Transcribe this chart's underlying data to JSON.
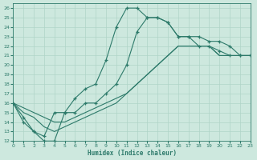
{
  "xlabel": "Humidex (Indice chaleur)",
  "bg_color": "#cde8de",
  "grid_color": "#b0d4c8",
  "line_color": "#2d7a6a",
  "xlim": [
    0,
    23
  ],
  "ylim": [
    12,
    26.5
  ],
  "xticks": [
    0,
    1,
    2,
    3,
    4,
    5,
    6,
    7,
    8,
    9,
    10,
    11,
    12,
    13,
    14,
    15,
    16,
    17,
    18,
    19,
    20,
    21,
    22,
    23
  ],
  "yticks": [
    12,
    13,
    14,
    15,
    16,
    17,
    18,
    19,
    20,
    21,
    22,
    23,
    24,
    25,
    26
  ],
  "s1x": [
    0,
    1,
    2,
    3,
    4,
    5,
    6,
    7,
    8,
    9,
    10,
    11,
    12,
    13,
    14,
    15,
    16,
    17,
    18,
    19,
    20,
    21,
    22,
    23
  ],
  "s1y": [
    16,
    14,
    13,
    12,
    12,
    15,
    16.5,
    17.5,
    18,
    20.5,
    24,
    26,
    26,
    25,
    25,
    24.5,
    23,
    23,
    23,
    22.5,
    22.5,
    22,
    21,
    21
  ],
  "s2x": [
    0,
    1,
    2,
    3,
    4,
    5,
    6,
    7,
    8,
    9,
    10,
    11,
    12,
    13,
    14,
    15,
    16,
    17,
    18,
    19,
    20,
    21,
    22,
    23
  ],
  "s2y": [
    16,
    14.5,
    13,
    12.5,
    15,
    15,
    15,
    16,
    16,
    17,
    18,
    20,
    23.5,
    25,
    25,
    24.5,
    23,
    23,
    22,
    22,
    21.5,
    21,
    21,
    21
  ],
  "s3x": [
    0,
    1,
    2,
    3,
    4,
    5,
    6,
    7,
    8,
    9,
    10,
    11,
    12,
    13,
    14,
    15,
    16,
    17,
    18,
    19,
    20,
    21,
    22,
    23
  ],
  "s3y": [
    16,
    15.5,
    15,
    14.5,
    14,
    14,
    14.5,
    15,
    15.5,
    16,
    16.5,
    17,
    18,
    19,
    20,
    21,
    22,
    22,
    22,
    22,
    21,
    21,
    21,
    21
  ],
  "s4x": [
    0,
    1,
    2,
    3,
    4,
    5,
    6,
    7,
    8,
    9,
    10,
    11,
    12,
    13,
    14,
    15,
    16,
    17,
    18,
    19,
    20,
    21,
    22,
    23
  ],
  "s4y": [
    16,
    15,
    14.5,
    13.5,
    13,
    13.5,
    14,
    14.5,
    15,
    15.5,
    16,
    17,
    18,
    19,
    20,
    21,
    22,
    22,
    22,
    22,
    21,
    21,
    21,
    21
  ]
}
